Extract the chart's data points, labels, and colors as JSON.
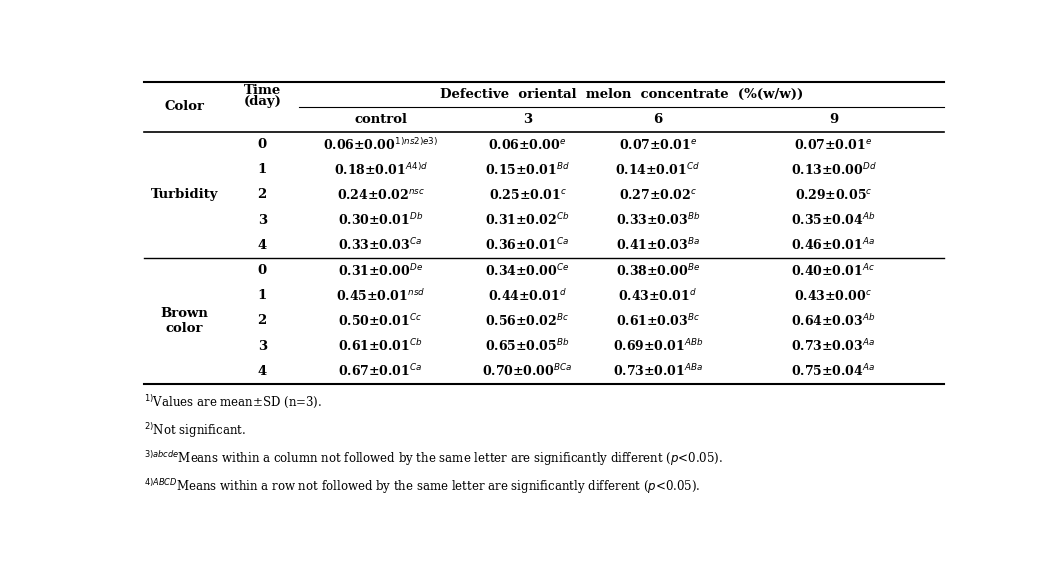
{
  "col_header": [
    "control",
    "3",
    "6",
    "9"
  ],
  "turbidity_rows": [
    [
      "0",
      "0.06±0.00$^{1)ns2)e3)}$",
      "0.06±0.00$^{e}$",
      "0.07±0.01$^{e}$",
      "0.07±0.01$^{e}$"
    ],
    [
      "1",
      "0.18±0.01$^{A4)d}$",
      "0.15±0.01$^{Bd}$",
      "0.14±0.01$^{Cd}$",
      "0.13±0.00$^{Dd}$"
    ],
    [
      "2",
      "0.24±0.02$^{nsc}$",
      "0.25±0.01$^{c}$",
      "0.27±0.02$^{c}$",
      "0.29±0.05$^{c}$"
    ],
    [
      "3",
      "0.30±0.01$^{Db}$",
      "0.31±0.02$^{Cb}$",
      "0.33±0.03$^{Bb}$",
      "0.35±0.04$^{Ab}$"
    ],
    [
      "4",
      "0.33±0.03$^{Ca}$",
      "0.36±0.01$^{Ca}$",
      "0.41±0.03$^{Ba}$",
      "0.46±0.01$^{Aa}$"
    ]
  ],
  "brown_rows": [
    [
      "0",
      "0.31±0.00$^{De}$",
      "0.34±0.00$^{Ce}$",
      "0.38±0.00$^{Be}$",
      "0.40±0.01$^{Ac}$"
    ],
    [
      "1",
      "0.45±0.01$^{nsd}$",
      "0.44±0.01$^{d}$",
      "0.43±0.01$^{d}$",
      "0.43±0.00$^{c}$"
    ],
    [
      "2",
      "0.50±0.01$^{Cc}$",
      "0.56±0.02$^{Bc}$",
      "0.61±0.03$^{Bc}$",
      "0.64±0.03$^{Ab}$"
    ],
    [
      "3",
      "0.61±0.01$^{Cb}$",
      "0.65±0.05$^{Bb}$",
      "0.69±0.01$^{ABb}$",
      "0.73±0.03$^{Aa}$"
    ],
    [
      "4",
      "0.67±0.01$^{Ca}$",
      "0.70±0.00$^{BCa}$",
      "0.73±0.01$^{ABa}$",
      "0.75±0.04$^{Aa}$"
    ]
  ],
  "footnotes": [
    "$^{1)}$Values are mean±SD (n=3).",
    "$^{2)}$Not significant.",
    "$^{3)abcde}$Means within a column not followed by the same letter are significantly different ($p$<0.05).",
    "$^{4)ABCD}$Means within a row not followed by the same letter are significantly different ($p$<0.05)."
  ],
  "fontsize": 9.5,
  "fn_fontsize": 8.5,
  "bold": true
}
